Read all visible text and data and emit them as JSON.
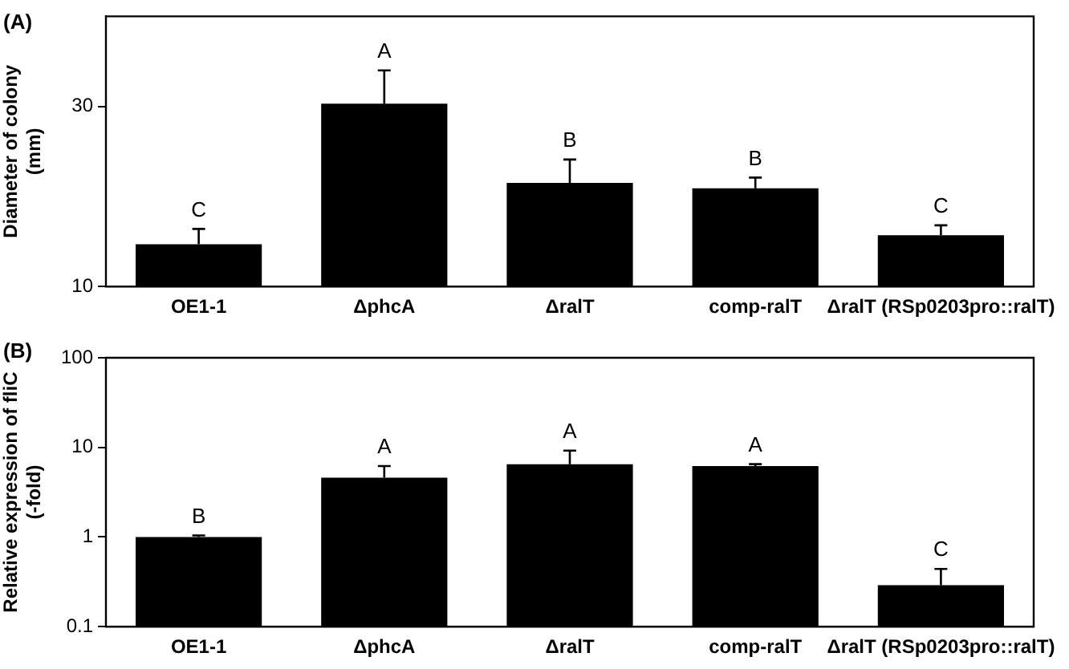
{
  "chart_data": [
    {
      "type": "bar",
      "title": "(A)",
      "ylabel": "Diameter of colony\n(mm)",
      "categories": [
        "OE1-1",
        "ΔphcA",
        "ΔralT",
        "comp-ralT",
        "ΔralT (RSp0203pro::ralT)"
      ],
      "values": [
        14.7,
        30.3,
        21.5,
        20.9,
        15.7
      ],
      "errors": [
        1.7,
        3.7,
        2.6,
        1.2,
        1.1
      ],
      "color": "#000000",
      "ylim": [
        10,
        40
      ],
      "yticks": [
        10,
        30
      ],
      "grid": false,
      "legend": false,
      "annotations": [
        {
          "text": "C",
          "x": "OE1-1",
          "y": 16.4
        },
        {
          "text": "A",
          "x": "ΔphcA",
          "y": 34.0
        },
        {
          "text": "B",
          "x": "ΔralT",
          "y": 24.1
        },
        {
          "text": "B",
          "x": "comp-ralT",
          "y": 22.1
        },
        {
          "text": "C",
          "x": "ΔralT (RSp0203pro::ralT)",
          "y": 16.8
        }
      ]
    },
    {
      "type": "bar",
      "title": "(B)",
      "ylabel": "Relative expression of fliC\n(-fold)",
      "categories": [
        "OE1-1",
        "ΔphcA",
        "ΔralT",
        "comp-ralT",
        "ΔralT (RSp0203pro::ralT)"
      ],
      "values": [
        1.0,
        4.6,
        6.5,
        6.2,
        0.29
      ],
      "errors": [
        0.04,
        1.6,
        2.7,
        0.3,
        0.15
      ],
      "color": "#000000",
      "ylim": [
        0.1,
        100
      ],
      "yticks": [
        0.1,
        1,
        10,
        100
      ],
      "log": true,
      "grid": false,
      "legend": false,
      "annotations": [
        {
          "text": "B",
          "x": "OE1-1",
          "y": 1.04
        },
        {
          "text": "A",
          "x": "ΔphcA",
          "y": 6.2
        },
        {
          "text": "A",
          "x": "ΔralT",
          "y": 9.2
        },
        {
          "text": "A",
          "x": "comp-ralT",
          "y": 6.5
        },
        {
          "text": "C",
          "x": "ΔralT (RSp0203pro::ralT)",
          "y": 0.44
        }
      ]
    }
  ]
}
